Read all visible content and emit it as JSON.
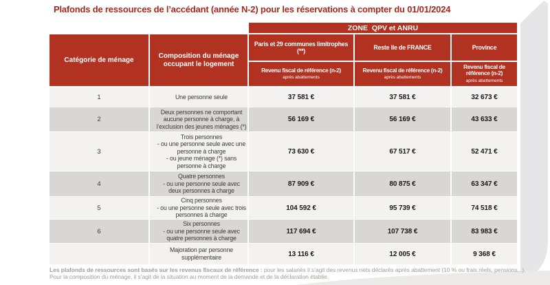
{
  "title": "Plafonds de ressources de l’accédant (année N-2) pour les réservations à compter du 01/01/2024",
  "colors": {
    "header_red": "#b23222",
    "title_red": "#a6271c",
    "row_light": "#f3f2f0",
    "row_dark": "#d9d7d5",
    "footer_gray": "#9e9d9b"
  },
  "table": {
    "zone_header": "ZONE  QPV et ANRU",
    "col1_header": "Catégorie de ménage",
    "col2_header": "Composition du ménage occupant le logement",
    "zone_columns": [
      {
        "name": "Paris et 29 communes limitrophes (**)",
        "sub": "Revenu fiscal de référence (n-2)",
        "sub_small": "après abattements"
      },
      {
        "name": "Reste Ile de FRANCE",
        "sub": "Revenu fiscal de référence (n-2)",
        "sub_small": "après abattements"
      },
      {
        "name": "Province",
        "sub": "Revenu fiscal de référence (n-2)",
        "sub_small": "après abattements"
      }
    ],
    "rows": [
      {
        "category": "1",
        "composition": [
          "Une personne seule"
        ],
        "paris": "37 581 €",
        "idf": "37 581 €",
        "province": "32 673 €"
      },
      {
        "category": "2",
        "composition": [
          "Deux personnes ne comportant",
          "aucune personne à charge, à",
          "l’exclusion des jeunes ménages (*)"
        ],
        "paris": "56 169 €",
        "idf": "56 169 €",
        "province": "43 633 €"
      },
      {
        "category": "3",
        "composition": [
          "Trois personnes",
          "- ou une personne seule avec une",
          "personne à charge",
          "- ou jeune ménage (*) sans",
          "personne à charge"
        ],
        "paris": "73 630 €",
        "idf": "67 517 €",
        "province": "52 471 €"
      },
      {
        "category": "4",
        "composition": [
          "Quatre personnes",
          "- ou une personne seule avec",
          "deux personnes à charge"
        ],
        "paris": "87 909 €",
        "idf": "80 875 €",
        "province": "63 347 €"
      },
      {
        "category": "5",
        "composition": [
          "Cinq personnes",
          "- ou une personne seule avec trois",
          "personnes à charge"
        ],
        "paris": "104 592 €",
        "idf": "95 739 €",
        "province": "74 518 €"
      },
      {
        "category": "6",
        "composition": [
          "Six personnes",
          "- ou une personne seule avec",
          "quatre personnes à charge"
        ],
        "paris": "117 694 €",
        "idf": "107 738 €",
        "province": "83 983 €"
      },
      {
        "category": "",
        "composition": [
          "Majoration par personne",
          "supplémentaire"
        ],
        "paris": "13 116 €",
        "idf": "12 005 €",
        "province": "9 368 €"
      }
    ]
  },
  "footer": {
    "line1_bold": "Les plafonds de ressources sont basés sur les revenus fiscaux de référence :",
    "line1_regular": "pour les salariés il s’agit des revenus nets déclarés après abattement (10 % ou frais réels, pensions...).",
    "line3_clipped": "Pour la composition du ménage, il s’agit de la situation au moment de la demande et de la déclaration établie."
  }
}
